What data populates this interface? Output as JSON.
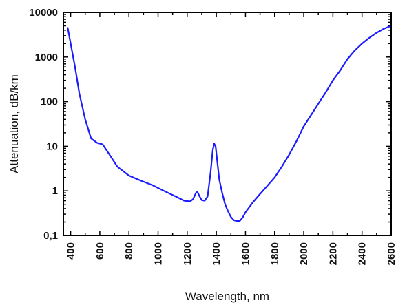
{
  "chart_data": {
    "type": "line",
    "title": "",
    "xlabel": "Wavelength, nm",
    "ylabel": "Attenuation, dB/km",
    "xlim": [
      350,
      2600
    ],
    "ylim": [
      0.1,
      10000
    ],
    "yscale": "log",
    "grid": false,
    "legend": "none",
    "x_ticks": [
      400,
      600,
      800,
      1000,
      1200,
      1400,
      1600,
      1800,
      2000,
      2200,
      2400,
      2600
    ],
    "x_tick_labels": [
      "400",
      "600",
      "800",
      "1000",
      "1200",
      "1400",
      "1600",
      "1800",
      "2000",
      "2200",
      "2400",
      "2600"
    ],
    "y_ticks": [
      0.1,
      1,
      10,
      100,
      1000,
      10000
    ],
    "y_tick_labels": [
      "0,1",
      "1",
      "10",
      "100",
      "1000",
      "10000"
    ],
    "series": [
      {
        "color": "#1a1aff",
        "points": [
          [
            380,
            4500
          ],
          [
            400,
            2000
          ],
          [
            430,
            600
          ],
          [
            460,
            150
          ],
          [
            500,
            40
          ],
          [
            540,
            15
          ],
          [
            580,
            12
          ],
          [
            620,
            11
          ],
          [
            660,
            7
          ],
          [
            720,
            3.5
          ],
          [
            800,
            2.2
          ],
          [
            880,
            1.7
          ],
          [
            960,
            1.35
          ],
          [
            1040,
            1.0
          ],
          [
            1120,
            0.75
          ],
          [
            1180,
            0.6
          ],
          [
            1220,
            0.58
          ],
          [
            1240,
            0.65
          ],
          [
            1260,
            0.9
          ],
          [
            1270,
            0.95
          ],
          [
            1285,
            0.75
          ],
          [
            1300,
            0.62
          ],
          [
            1320,
            0.6
          ],
          [
            1340,
            0.75
          ],
          [
            1360,
            2.5
          ],
          [
            1375,
            8
          ],
          [
            1385,
            11.5
          ],
          [
            1395,
            10
          ],
          [
            1405,
            5
          ],
          [
            1420,
            1.8
          ],
          [
            1440,
            0.9
          ],
          [
            1460,
            0.5
          ],
          [
            1480,
            0.35
          ],
          [
            1500,
            0.26
          ],
          [
            1520,
            0.22
          ],
          [
            1540,
            0.21
          ],
          [
            1560,
            0.21
          ],
          [
            1580,
            0.25
          ],
          [
            1600,
            0.33
          ],
          [
            1650,
            0.55
          ],
          [
            1700,
            0.85
          ],
          [
            1750,
            1.3
          ],
          [
            1800,
            2.0
          ],
          [
            1850,
            3.5
          ],
          [
            1900,
            6.5
          ],
          [
            1950,
            13
          ],
          [
            2000,
            28
          ],
          [
            2050,
            50
          ],
          [
            2100,
            90
          ],
          [
            2150,
            160
          ],
          [
            2200,
            300
          ],
          [
            2250,
            500
          ],
          [
            2300,
            900
          ],
          [
            2350,
            1400
          ],
          [
            2400,
            2000
          ],
          [
            2450,
            2700
          ],
          [
            2500,
            3500
          ],
          [
            2550,
            4300
          ],
          [
            2600,
            5000
          ]
        ]
      }
    ]
  }
}
